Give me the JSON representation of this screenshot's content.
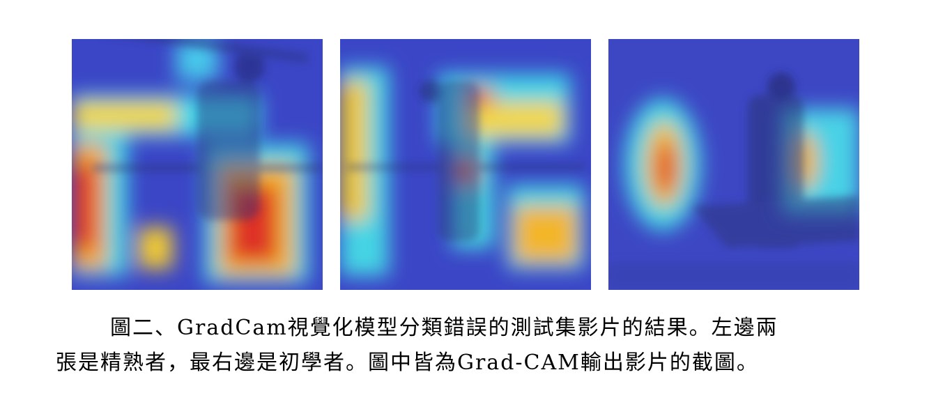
{
  "figure": {
    "caption_line1": "圖二、GradCam視覺化模型分類錯誤的測試集影片的結果。左邊兩",
    "caption_line2": "張是精熟者，最右邊是初學者。圖中皆為Grad-CAM輸出影片的截圖。"
  },
  "colors": {
    "overlay_base": "#3a44c4",
    "heat_hot": "#e0372a",
    "heat_warm": "#f4c21f",
    "heat_mid": "#42d0e6"
  }
}
